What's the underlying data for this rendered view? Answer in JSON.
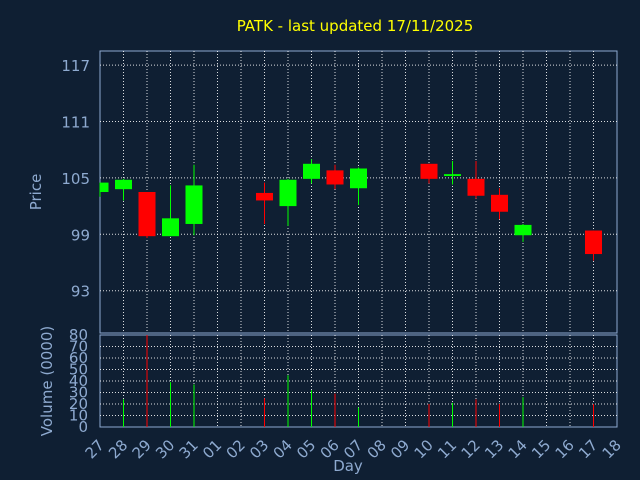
{
  "colors": {
    "background": "#0f1f33",
    "title": "#ffff00",
    "axis_text": "#8eaad0",
    "grid": "#ffffff",
    "up": "#00ff00",
    "down": "#ff0000"
  },
  "chart_data": {
    "type": "candlestick",
    "title": "PATK - last updated 17/11/2025",
    "xlabel": "Day",
    "x_ticks": [
      "27",
      "28",
      "29",
      "30",
      "31",
      "01",
      "02",
      "03",
      "04",
      "05",
      "06",
      "07",
      "08",
      "09",
      "10",
      "11",
      "12",
      "13",
      "14",
      "15",
      "16",
      "17",
      "18"
    ],
    "price_panel": {
      "ylabel": "Price",
      "ylim": [
        88.5,
        118.5
      ],
      "y_ticks": [
        93,
        99,
        105,
        111,
        117
      ],
      "candles": [
        {
          "day": "27",
          "open": 103.5,
          "high": 104.5,
          "low": 103.0,
          "close": 104.5
        },
        {
          "day": "28",
          "open": 103.8,
          "high": 104.9,
          "low": 102.6,
          "close": 104.8
        },
        {
          "day": "29",
          "open": 103.5,
          "high": 103.5,
          "low": 98.6,
          "close": 98.8
        },
        {
          "day": "30",
          "open": 98.8,
          "high": 104.2,
          "low": 98.8,
          "close": 100.7
        },
        {
          "day": "31",
          "open": 100.1,
          "high": 106.4,
          "low": 98.9,
          "close": 104.2
        },
        {
          "day": "03",
          "open": 103.4,
          "high": 104.5,
          "low": 100.1,
          "close": 102.6
        },
        {
          "day": "04",
          "open": 102.0,
          "high": 104.9,
          "low": 99.9,
          "close": 104.8
        },
        {
          "day": "05",
          "open": 104.9,
          "high": 107.0,
          "low": 104.4,
          "close": 106.5
        },
        {
          "day": "06",
          "open": 105.8,
          "high": 106.4,
          "low": 103.8,
          "close": 104.3
        },
        {
          "day": "07",
          "open": 103.9,
          "high": 106.1,
          "low": 102.1,
          "close": 106.0
        },
        {
          "day": "10",
          "open": 106.5,
          "high": 106.5,
          "low": 104.4,
          "close": 104.9
        },
        {
          "day": "11",
          "open": 105.2,
          "high": 106.8,
          "low": 104.3,
          "close": 105.4
        },
        {
          "day": "12",
          "open": 104.9,
          "high": 106.8,
          "low": 102.8,
          "close": 103.1
        },
        {
          "day": "13",
          "open": 103.2,
          "high": 103.9,
          "low": 100.6,
          "close": 101.4
        },
        {
          "day": "14",
          "open": 98.9,
          "high": 100.1,
          "low": 98.2,
          "close": 100.0
        },
        {
          "day": "17",
          "open": 99.4,
          "high": 99.4,
          "low": 96.2,
          "close": 96.9
        }
      ]
    },
    "volume_panel": {
      "ylabel": "Volume (0000)",
      "ylim": [
        0,
        80
      ],
      "y_ticks": [
        0,
        10,
        20,
        30,
        40,
        50,
        60,
        70,
        80
      ],
      "bars": [
        {
          "day": "28",
          "value": 24,
          "dir": "up"
        },
        {
          "day": "29",
          "value": 80,
          "dir": "down"
        },
        {
          "day": "30",
          "value": 39,
          "dir": "up"
        },
        {
          "day": "31",
          "value": 37,
          "dir": "up"
        },
        {
          "day": "03",
          "value": 25,
          "dir": "down"
        },
        {
          "day": "04",
          "value": 45,
          "dir": "up"
        },
        {
          "day": "05",
          "value": 32,
          "dir": "up"
        },
        {
          "day": "06",
          "value": 29,
          "dir": "down"
        },
        {
          "day": "07",
          "value": 17,
          "dir": "up"
        },
        {
          "day": "10",
          "value": 20,
          "dir": "down"
        },
        {
          "day": "11",
          "value": 21,
          "dir": "up"
        },
        {
          "day": "12",
          "value": 24,
          "dir": "down"
        },
        {
          "day": "13",
          "value": 20,
          "dir": "down"
        },
        {
          "day": "14",
          "value": 26,
          "dir": "up"
        },
        {
          "day": "17",
          "value": 20,
          "dir": "down"
        }
      ]
    },
    "grid": true
  }
}
